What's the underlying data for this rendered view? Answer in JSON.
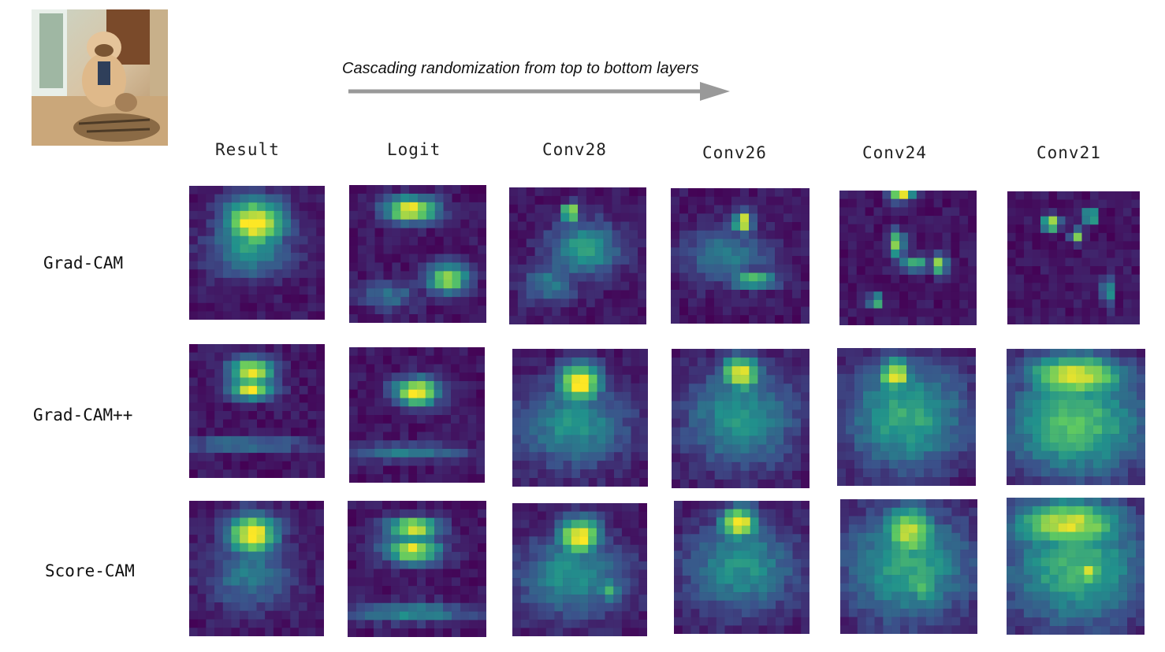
{
  "header": {
    "caption": "Cascading randomization from top to bottom layers"
  },
  "input_image": {
    "icon": "dog-and-cat-photo-icon"
  },
  "columns": [
    "Result",
    "Logit",
    "Conv28",
    "Conv26",
    "Conv24",
    "Conv21"
  ],
  "rows": [
    "Grad-CAM",
    "Grad-CAM++",
    "Score-CAM"
  ],
  "colors": {
    "low": "#440154",
    "mid": "#21918c",
    "high": "#fde725",
    "arrow": "#999999"
  }
}
